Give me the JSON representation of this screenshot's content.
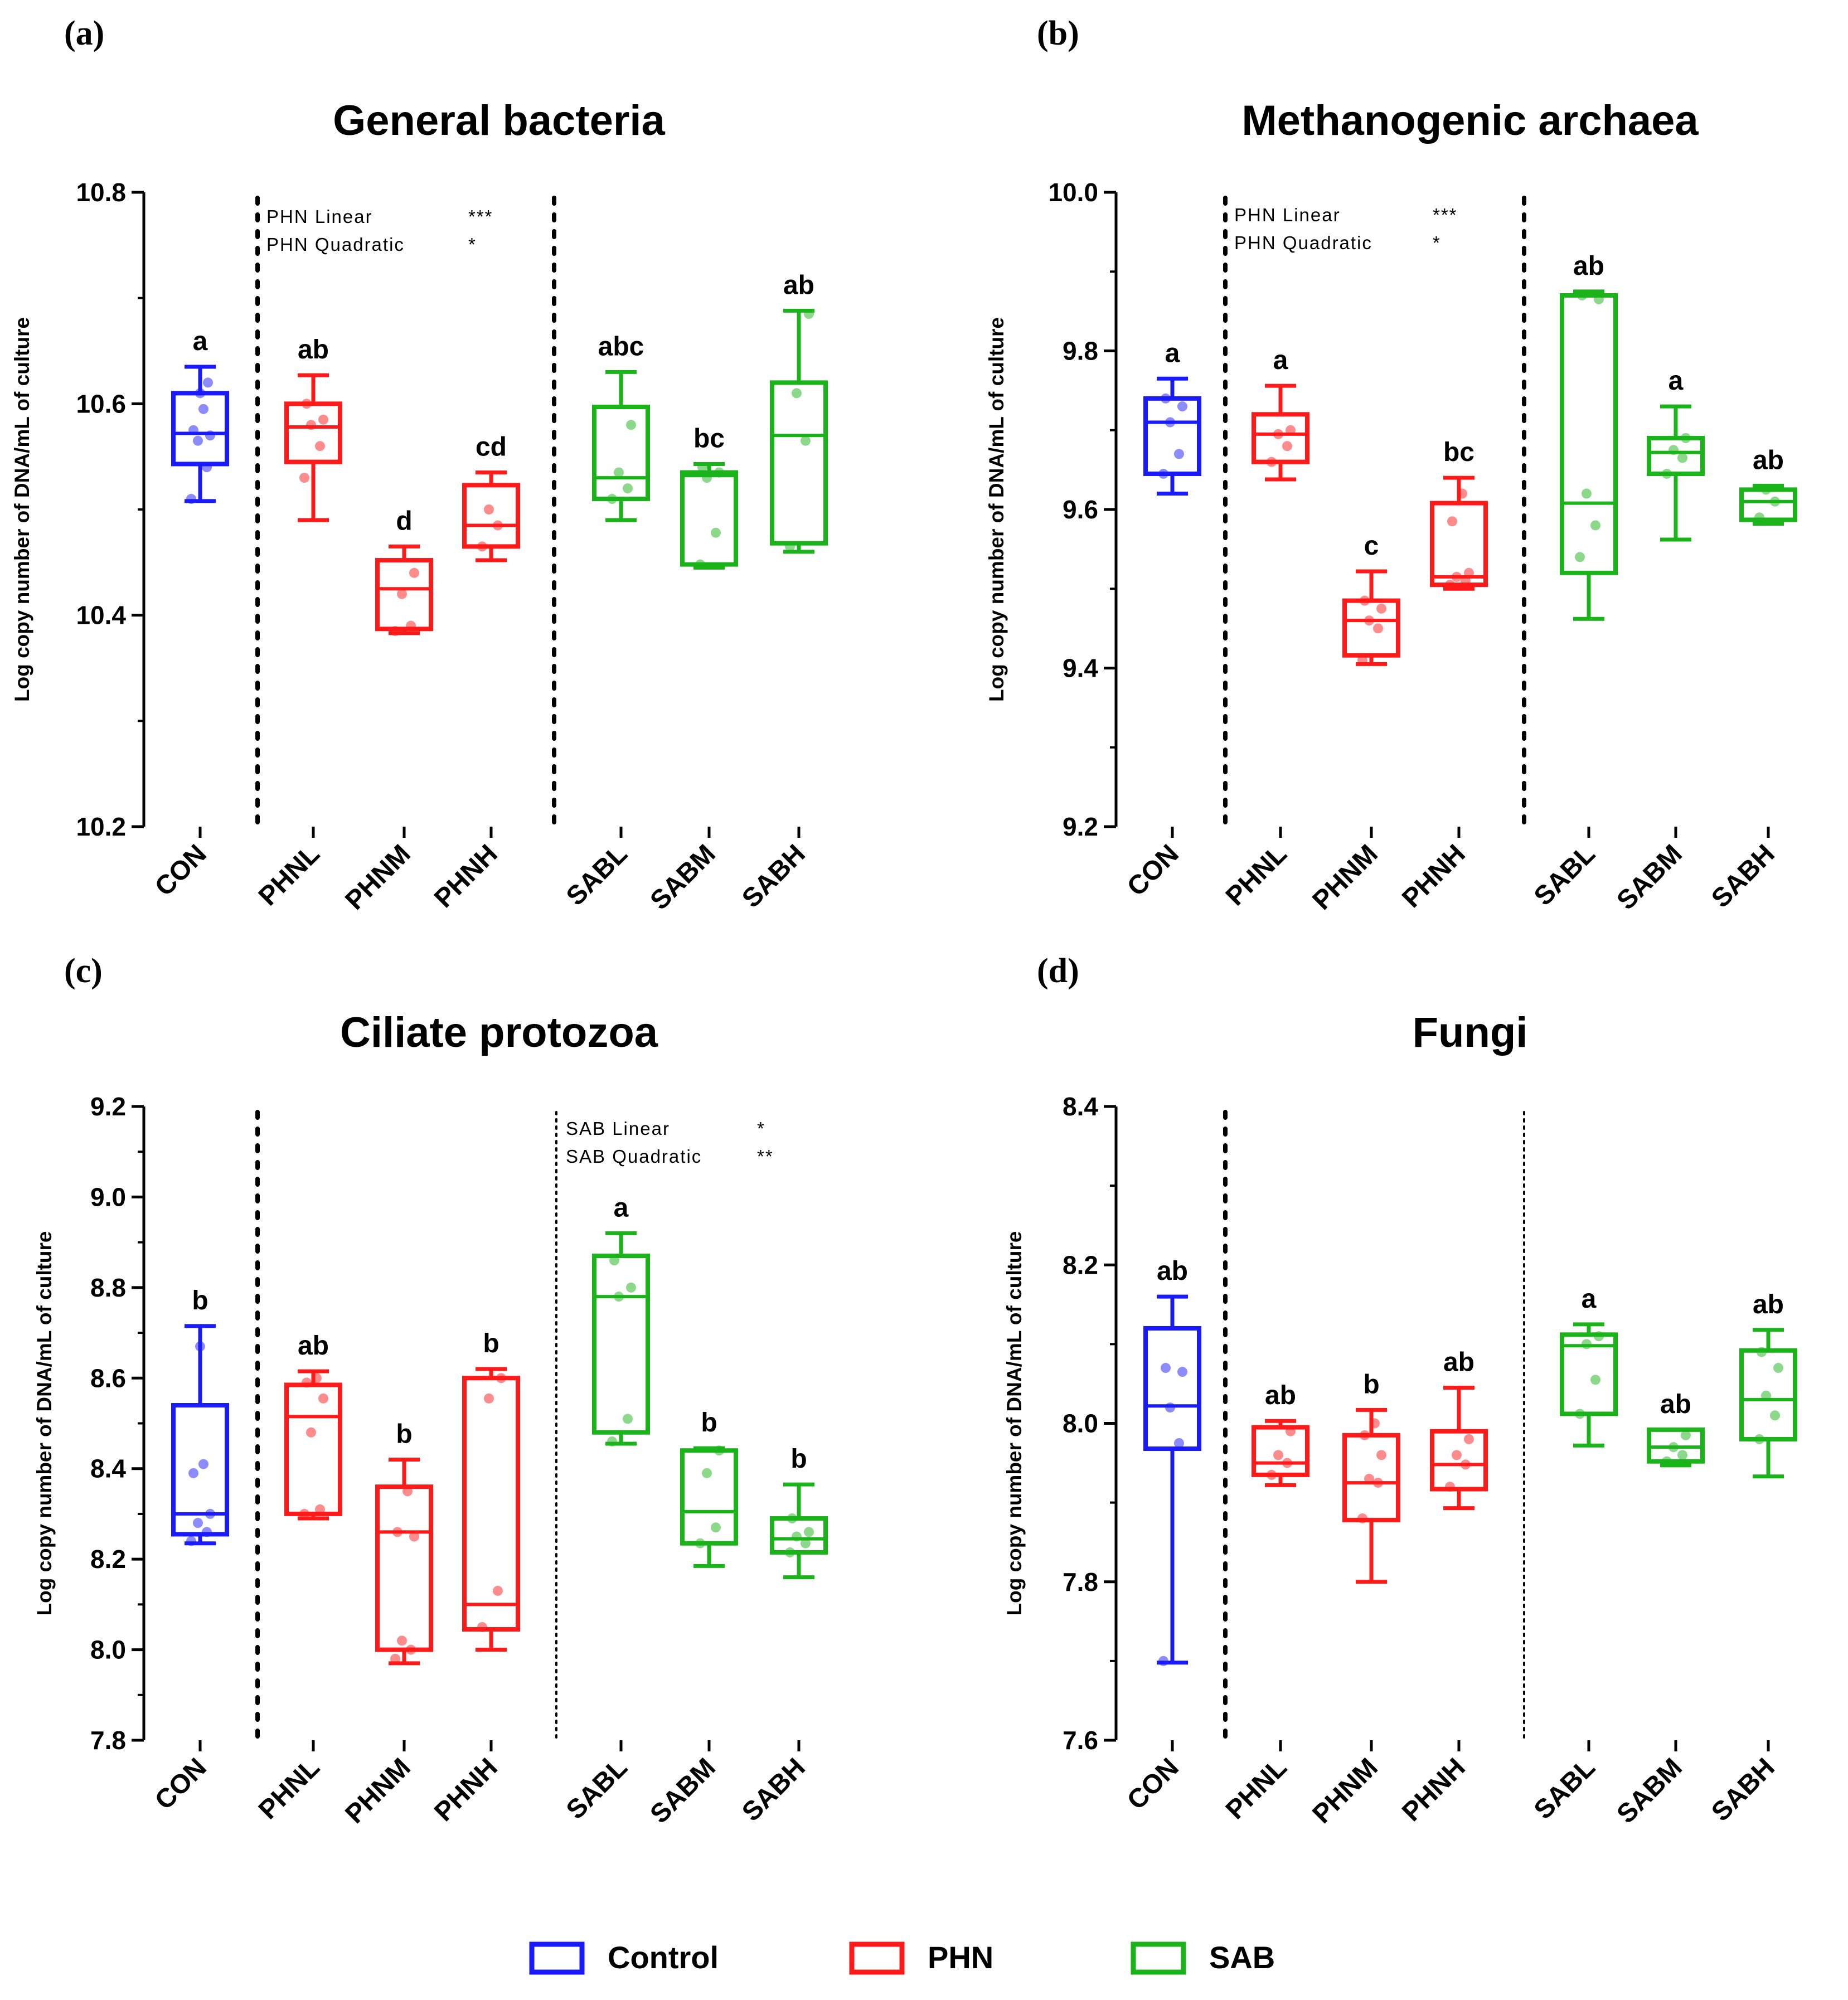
{
  "chart_data": [
    {
      "type": "box",
      "panel_label": "(a)",
      "title": "General bacteria",
      "ylabel": "Log copy number of DNA/mL of culture",
      "ylim": [
        10.2,
        10.8
      ],
      "yticks": [
        "10.2",
        "10.4",
        "10.6",
        "10.8"
      ],
      "minor_step": 0.1,
      "categories": [
        "CON",
        "PHNL",
        "PHNM",
        "PHNH",
        "SABL",
        "SABM",
        "SABH"
      ],
      "annotations": [
        {
          "text": "PHN Linear",
          "sig": "***"
        },
        {
          "text": "PHN Quadratic",
          "sig": "*"
        }
      ],
      "boxes": [
        {
          "group": "Control",
          "min": 10.508,
          "q1": 10.543,
          "median": 10.572,
          "q3": 10.61,
          "max": 10.635,
          "letter": "a",
          "points": [
            10.51,
            10.54,
            10.565,
            10.57,
            10.575,
            10.595,
            10.61,
            10.62
          ]
        },
        {
          "group": "PHN",
          "min": 10.49,
          "q1": 10.545,
          "median": 10.578,
          "q3": 10.6,
          "max": 10.627,
          "letter": "ab",
          "points": [
            10.53,
            10.56,
            10.58,
            10.585,
            10.6
          ]
        },
        {
          "group": "PHN",
          "min": 10.383,
          "q1": 10.387,
          "median": 10.425,
          "q3": 10.452,
          "max": 10.465,
          "letter": "d",
          "points": [
            10.385,
            10.39,
            10.42,
            10.44
          ]
        },
        {
          "group": "PHN",
          "min": 10.452,
          "q1": 10.465,
          "median": 10.485,
          "q3": 10.523,
          "max": 10.535,
          "letter": "cd",
          "points": [
            10.465,
            10.485,
            10.5
          ]
        },
        {
          "group": "SAB",
          "min": 10.49,
          "q1": 10.51,
          "median": 10.53,
          "q3": 10.597,
          "max": 10.63,
          "letter": "abc",
          "points": [
            10.51,
            10.52,
            10.535,
            10.58
          ]
        },
        {
          "group": "SAB",
          "min": 10.445,
          "q1": 10.448,
          "median": 10.532,
          "q3": 10.535,
          "max": 10.543,
          "letter": "bc",
          "points": [
            10.448,
            10.478,
            10.53,
            10.535,
            10.54
          ]
        },
        {
          "group": "SAB",
          "min": 10.46,
          "q1": 10.468,
          "median": 10.57,
          "q3": 10.62,
          "max": 10.688,
          "letter": "ab",
          "points": [
            10.465,
            10.565,
            10.61,
            10.685
          ]
        }
      ]
    },
    {
      "type": "box",
      "panel_label": "(b)",
      "title": "Methanogenic archaea",
      "ylabel": "Log copy number of DNA/mL of culture",
      "ylim": [
        9.2,
        10.0
      ],
      "yticks": [
        "9.2",
        "9.4",
        "9.6",
        "9.8",
        "10.0"
      ],
      "minor_step": 0.1,
      "categories": [
        "CON",
        "PHNL",
        "PHNM",
        "PHNH",
        "SABL",
        "SABM",
        "SABH"
      ],
      "annotations": [
        {
          "text": "PHN Linear",
          "sig": "***"
        },
        {
          "text": "PHN Quadratic",
          "sig": "*"
        }
      ],
      "boxes": [
        {
          "group": "Control",
          "min": 9.62,
          "q1": 9.645,
          "median": 9.71,
          "q3": 9.74,
          "max": 9.765,
          "letter": "a",
          "points": [
            9.645,
            9.67,
            9.71,
            9.73,
            9.74
          ]
        },
        {
          "group": "PHN",
          "min": 9.638,
          "q1": 9.66,
          "median": 9.695,
          "q3": 9.72,
          "max": 9.756,
          "letter": "a",
          "points": [
            9.66,
            9.68,
            9.695,
            9.7
          ]
        },
        {
          "group": "PHN",
          "min": 9.405,
          "q1": 9.416,
          "median": 9.46,
          "q3": 9.485,
          "max": 9.522,
          "letter": "c",
          "points": [
            9.41,
            9.45,
            9.46,
            9.475,
            9.485
          ]
        },
        {
          "group": "PHN",
          "min": 9.5,
          "q1": 9.505,
          "median": 9.515,
          "q3": 9.608,
          "max": 9.64,
          "letter": "bc",
          "points": [
            9.505,
            9.51,
            9.515,
            9.52,
            9.585,
            9.62
          ]
        },
        {
          "group": "SAB",
          "min": 9.462,
          "q1": 9.52,
          "median": 9.608,
          "q3": 9.87,
          "max": 9.875,
          "letter": "ab",
          "points": [
            9.54,
            9.58,
            9.62,
            9.865,
            9.87
          ]
        },
        {
          "group": "SAB",
          "min": 9.562,
          "q1": 9.645,
          "median": 9.672,
          "q3": 9.69,
          "max": 9.73,
          "letter": "a",
          "points": [
            9.645,
            9.665,
            9.675,
            9.69
          ]
        },
        {
          "group": "SAB",
          "min": 9.582,
          "q1": 9.587,
          "median": 9.61,
          "q3": 9.625,
          "max": 9.63,
          "letter": "ab",
          "points": [
            9.59,
            9.61,
            9.625
          ]
        }
      ]
    },
    {
      "type": "box",
      "panel_label": "(c)",
      "title": "Ciliate protozoa",
      "ylabel": "Log copy number of DNA/mL of culture",
      "ylim": [
        7.8,
        9.2
      ],
      "yticks": [
        "7.8",
        "8.0",
        "8.2",
        "8.4",
        "8.6",
        "8.8",
        "9.0",
        "9.2"
      ],
      "minor_step": 0.1,
      "categories": [
        "CON",
        "PHNL",
        "PHNM",
        "PHNH",
        "SABL",
        "SABM",
        "SABH"
      ],
      "annotations": [
        {
          "text": "SAB Linear",
          "sig": "*"
        },
        {
          "text": "SAB Quadratic",
          "sig": "**"
        }
      ],
      "boxes": [
        {
          "group": "Control",
          "min": 8.235,
          "q1": 8.255,
          "median": 8.3,
          "q3": 8.54,
          "max": 8.715,
          "letter": "b",
          "points": [
            8.24,
            8.26,
            8.28,
            8.3,
            8.39,
            8.41,
            8.67
          ]
        },
        {
          "group": "PHN",
          "min": 8.29,
          "q1": 8.3,
          "median": 8.515,
          "q3": 8.585,
          "max": 8.615,
          "letter": "ab",
          "points": [
            8.3,
            8.31,
            8.48,
            8.555,
            8.59,
            8.6
          ]
        },
        {
          "group": "PHN",
          "min": 7.97,
          "q1": 8.0,
          "median": 8.26,
          "q3": 8.36,
          "max": 8.42,
          "letter": "b",
          "points": [
            7.98,
            8.0,
            8.02,
            8.25,
            8.26,
            8.35
          ]
        },
        {
          "group": "PHN",
          "min": 8.0,
          "q1": 8.045,
          "median": 8.1,
          "q3": 8.6,
          "max": 8.62,
          "letter": "b",
          "points": [
            8.05,
            8.13,
            8.555,
            8.6
          ]
        },
        {
          "group": "SAB",
          "min": 8.455,
          "q1": 8.48,
          "median": 8.78,
          "q3": 8.87,
          "max": 8.92,
          "letter": "a",
          "points": [
            8.46,
            8.51,
            8.78,
            8.8,
            8.86
          ]
        },
        {
          "group": "SAB",
          "min": 8.185,
          "q1": 8.235,
          "median": 8.305,
          "q3": 8.44,
          "max": 8.445,
          "letter": "b",
          "points": [
            8.235,
            8.27,
            8.39,
            8.44
          ]
        },
        {
          "group": "SAB",
          "min": 8.16,
          "q1": 8.215,
          "median": 8.245,
          "q3": 8.29,
          "max": 8.365,
          "letter": "b",
          "points": [
            8.215,
            8.235,
            8.25,
            8.26,
            8.29
          ]
        }
      ]
    },
    {
      "type": "box",
      "panel_label": "(d)",
      "title": "Fungi",
      "ylabel": "Log copy number of DNA/mL of culture",
      "ylim": [
        7.6,
        8.4
      ],
      "yticks": [
        "7.6",
        "7.8",
        "8.0",
        "8.2",
        "8.4"
      ],
      "minor_step": 0.1,
      "categories": [
        "CON",
        "PHNL",
        "PHNM",
        "PHNH",
        "SABL",
        "SABM",
        "SABH"
      ],
      "annotations": [],
      "boxes": [
        {
          "group": "Control",
          "min": 7.698,
          "q1": 7.968,
          "median": 8.022,
          "q3": 8.12,
          "max": 8.16,
          "letter": "ab",
          "points": [
            7.7,
            7.975,
            8.02,
            8.065,
            8.07
          ]
        },
        {
          "group": "PHN",
          "min": 7.922,
          "q1": 7.935,
          "median": 7.95,
          "q3": 7.995,
          "max": 8.003,
          "letter": "ab",
          "points": [
            7.935,
            7.95,
            7.96,
            7.99
          ]
        },
        {
          "group": "PHN",
          "min": 7.8,
          "q1": 7.878,
          "median": 7.925,
          "q3": 7.985,
          "max": 8.017,
          "letter": "b",
          "points": [
            7.88,
            7.925,
            7.93,
            7.96,
            7.985,
            8.0
          ]
        },
        {
          "group": "PHN",
          "min": 7.893,
          "q1": 7.917,
          "median": 7.948,
          "q3": 7.99,
          "max": 8.045,
          "letter": "ab",
          "points": [
            7.92,
            7.948,
            7.96,
            7.98
          ]
        },
        {
          "group": "SAB",
          "min": 7.972,
          "q1": 8.012,
          "median": 8.098,
          "q3": 8.112,
          "max": 8.125,
          "letter": "a",
          "points": [
            8.012,
            8.055,
            8.1,
            8.11
          ]
        },
        {
          "group": "SAB",
          "min": 7.947,
          "q1": 7.952,
          "median": 7.97,
          "q3": 7.992,
          "max": 7.992,
          "letter": "ab",
          "points": [
            7.952,
            7.96,
            7.97,
            7.985
          ]
        },
        {
          "group": "SAB",
          "min": 7.933,
          "q1": 7.98,
          "median": 8.03,
          "q3": 8.092,
          "max": 8.118,
          "letter": "ab",
          "points": [
            7.98,
            8.01,
            8.035,
            8.07,
            8.09
          ]
        }
      ]
    }
  ],
  "legend": [
    {
      "label": "Control",
      "group": "Control"
    },
    {
      "label": "PHN",
      "group": "PHN"
    },
    {
      "label": "SAB",
      "group": "SAB"
    }
  ],
  "colors": {
    "Control": "#1a1aff",
    "PHN": "#ff1a1a",
    "SAB": "#1ab41a",
    "axis": "#000000"
  }
}
